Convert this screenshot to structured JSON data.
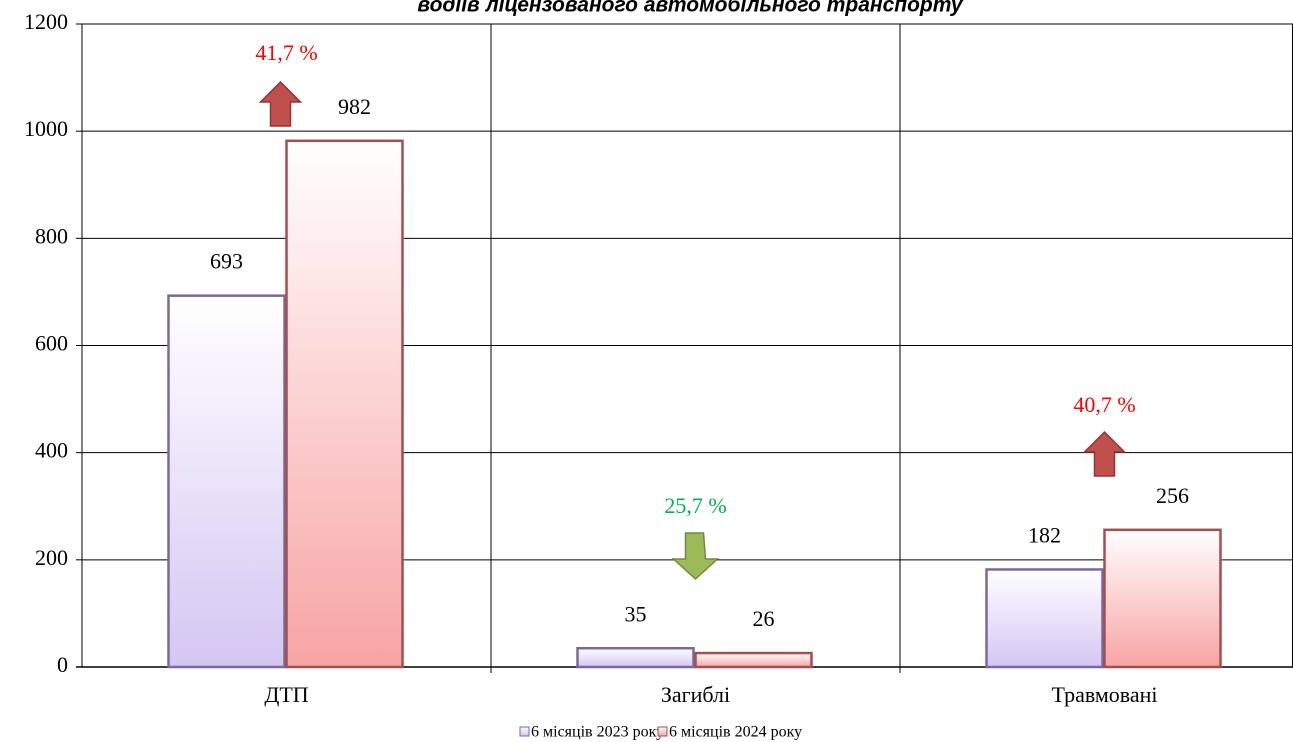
{
  "chart_data": {
    "type": "bar",
    "title": "водіів ліцензованого  автомобільного транспорту",
    "categories": [
      "ДТП",
      "Загиблі",
      "Травмовані"
    ],
    "series": [
      {
        "name": "6 місяців 2023 року",
        "color": "#d4c6f2",
        "values": [
          693,
          35,
          182
        ]
      },
      {
        "name": "6 місяців 2024 року",
        "color": "#f7a4a4",
        "values": [
          982,
          26,
          256
        ]
      }
    ],
    "annotations": [
      "41,7 %",
      "25,7 %",
      "40,7 %"
    ],
    "annotation_colors": [
      "#ff0000",
      "#00b050",
      "#ff0000"
    ],
    "annotation_arrows": [
      "up",
      "down",
      "up"
    ],
    "ylim": [
      0,
      1200
    ],
    "yticks": [
      0,
      200,
      400,
      600,
      800,
      1000,
      1200
    ],
    "grid": true,
    "legend": "bottom"
  }
}
